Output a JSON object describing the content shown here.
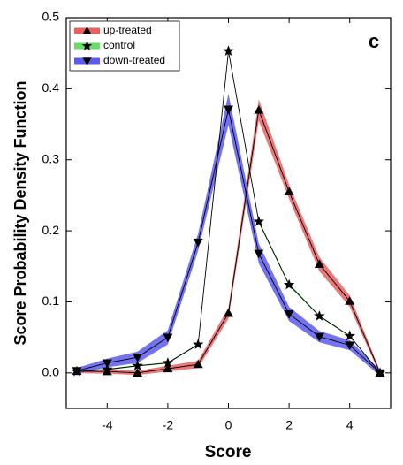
{
  "chart_data": {
    "type": "line",
    "annotation": "c",
    "xlabel": "Score",
    "ylabel": "Score Probability Density Function",
    "x": [
      -5,
      -4,
      -3,
      -2,
      -1,
      0,
      1,
      2,
      3,
      4,
      5
    ],
    "xlim": [
      -5.35,
      5.35
    ],
    "ylim": [
      -0.05,
      0.5
    ],
    "xticks": [
      -4,
      -2,
      0,
      2,
      4
    ],
    "yticks": [
      {
        "value": 0,
        "label": "0.0"
      },
      0.1,
      0.2,
      0.3,
      0.4,
      0.5
    ],
    "legend": "upper left",
    "series": [
      {
        "name": "up-treated",
        "color": "#e86060",
        "marker": "triangle-up",
        "values": [
          0.0025,
          0.002,
          0.0,
          0.006,
          0.012,
          0.084,
          0.37,
          0.255,
          0.153,
          0.101,
          0.0
        ],
        "errors": [
          0.003,
          0.003,
          0.003,
          0.004,
          0.005,
          0.008,
          0.015,
          0.01,
          0.01,
          0.008,
          0.003
        ]
      },
      {
        "name": "control",
        "color": "#66dd66",
        "marker": "star",
        "values": [
          0.002,
          0.005,
          0.01,
          0.014,
          0.04,
          0.453,
          0.213,
          0.124,
          0.08,
          0.052,
          0.0
        ],
        "errors": [
          0.001,
          0.001,
          0.001,
          0.001,
          0.001,
          0.002,
          0.002,
          0.002,
          0.001,
          0.001,
          0.001
        ]
      },
      {
        "name": "down-treated",
        "color": "#5a5aee",
        "marker": "triangle-down",
        "values": [
          0.003,
          0.014,
          0.022,
          0.05,
          0.184,
          0.371,
          0.168,
          0.083,
          0.051,
          0.039,
          0.0
        ],
        "errors": [
          0.004,
          0.006,
          0.008,
          0.01,
          0.012,
          0.022,
          0.014,
          0.01,
          0.008,
          0.007,
          0.004
        ]
      }
    ]
  }
}
